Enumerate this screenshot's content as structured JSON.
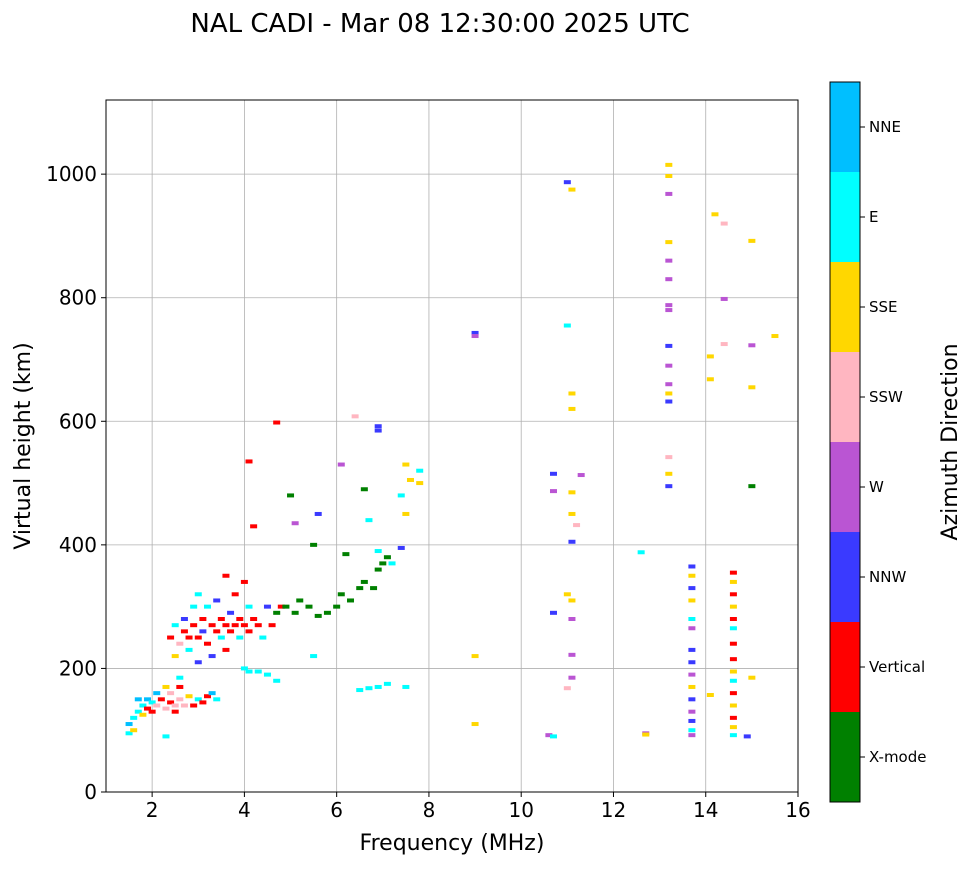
{
  "chart_data": {
    "type": "scatter",
    "title": "NAL CADI - Mar 08 12:30:00 2025 UTC",
    "xlabel": "Frequency (MHz)",
    "ylabel": "Virtual height (km)",
    "xlim": [
      1,
      16
    ],
    "ylim": [
      0,
      1120
    ],
    "xticks": [
      2,
      4,
      6,
      8,
      10,
      12,
      14,
      16
    ],
    "yticks": [
      0,
      200,
      400,
      600,
      800,
      1000
    ],
    "grid": true,
    "colorbar": {
      "label": "Azimuth Direction",
      "categories": [
        "X-mode",
        "Vertical",
        "NNW",
        "W",
        "SSW",
        "SSE",
        "E",
        "NNE"
      ],
      "colors": [
        "#008000",
        "#ff0000",
        "#3a3aff",
        "#ba55d3",
        "#ffb6c1",
        "#ffd700",
        "#00ffff",
        "#00bfff"
      ]
    },
    "points": [
      [
        1.5,
        95,
        6
      ],
      [
        1.5,
        110,
        7
      ],
      [
        1.6,
        120,
        6
      ],
      [
        1.6,
        100,
        5
      ],
      [
        1.7,
        130,
        6
      ],
      [
        1.7,
        150,
        7
      ],
      [
        1.8,
        125,
        5
      ],
      [
        1.8,
        140,
        6
      ],
      [
        1.9,
        135,
        1
      ],
      [
        1.9,
        150,
        7
      ],
      [
        2.0,
        130,
        1
      ],
      [
        2.0,
        145,
        6
      ],
      [
        2.1,
        160,
        7
      ],
      [
        2.1,
        140,
        4
      ],
      [
        2.2,
        150,
        1
      ],
      [
        2.3,
        170,
        5
      ],
      [
        2.3,
        135,
        4
      ],
      [
        2.4,
        145,
        1
      ],
      [
        2.4,
        160,
        4
      ],
      [
        2.5,
        140,
        4
      ],
      [
        2.5,
        130,
        1
      ],
      [
        2.6,
        150,
        4
      ],
      [
        2.6,
        170,
        1
      ],
      [
        2.7,
        140,
        4
      ],
      [
        2.8,
        155,
        5
      ],
      [
        2.9,
        140,
        1
      ],
      [
        3.0,
        150,
        6
      ],
      [
        3.1,
        145,
        1
      ],
      [
        3.2,
        155,
        1
      ],
      [
        3.3,
        160,
        7
      ],
      [
        3.4,
        150,
        6
      ],
      [
        2.3,
        90,
        6
      ],
      [
        2.6,
        185,
        6
      ],
      [
        2.4,
        250,
        1
      ],
      [
        2.5,
        270,
        6
      ],
      [
        2.5,
        220,
        5
      ],
      [
        2.6,
        240,
        4
      ],
      [
        2.7,
        260,
        1
      ],
      [
        2.7,
        280,
        2
      ],
      [
        2.8,
        250,
        1
      ],
      [
        2.8,
        230,
        6
      ],
      [
        2.9,
        270,
        1
      ],
      [
        2.9,
        300,
        6
      ],
      [
        3.0,
        250,
        1
      ],
      [
        3.0,
        210,
        2
      ],
      [
        3.1,
        280,
        1
      ],
      [
        3.1,
        260,
        2
      ],
      [
        3.2,
        240,
        1
      ],
      [
        3.2,
        300,
        6
      ],
      [
        3.3,
        270,
        1
      ],
      [
        3.3,
        220,
        2
      ],
      [
        3.4,
        260,
        1
      ],
      [
        3.4,
        310,
        2
      ],
      [
        3.5,
        280,
        1
      ],
      [
        3.5,
        250,
        6
      ],
      [
        3.6,
        270,
        1
      ],
      [
        3.6,
        230,
        1
      ],
      [
        3.7,
        290,
        2
      ],
      [
        3.7,
        260,
        1
      ],
      [
        3.8,
        270,
        1
      ],
      [
        3.8,
        320,
        1
      ],
      [
        3.9,
        250,
        6
      ],
      [
        3.9,
        280,
        1
      ],
      [
        4.0,
        270,
        1
      ],
      [
        4.0,
        340,
        1
      ],
      [
        4.1,
        260,
        1
      ],
      [
        4.1,
        300,
        6
      ],
      [
        4.2,
        280,
        1
      ],
      [
        4.3,
        270,
        1
      ],
      [
        4.4,
        250,
        6
      ],
      [
        4.5,
        300,
        2
      ],
      [
        4.6,
        270,
        1
      ],
      [
        4.8,
        300,
        1
      ],
      [
        3.6,
        350,
        1
      ],
      [
        3.0,
        320,
        6
      ],
      [
        4.0,
        200,
        6
      ],
      [
        4.1,
        195,
        6
      ],
      [
        4.3,
        195,
        6
      ],
      [
        4.5,
        190,
        6
      ],
      [
        4.7,
        180,
        6
      ],
      [
        5.5,
        220,
        6
      ],
      [
        6.5,
        165,
        6
      ],
      [
        6.7,
        168,
        6
      ],
      [
        6.9,
        170,
        6
      ],
      [
        7.1,
        175,
        6
      ],
      [
        7.5,
        170,
        6
      ],
      [
        4.7,
        290,
        0
      ],
      [
        4.9,
        300,
        0
      ],
      [
        5.1,
        290,
        0
      ],
      [
        5.2,
        310,
        0
      ],
      [
        5.4,
        300,
        0
      ],
      [
        5.6,
        285,
        0
      ],
      [
        5.8,
        290,
        0
      ],
      [
        6.0,
        300,
        0
      ],
      [
        6.1,
        320,
        0
      ],
      [
        6.3,
        310,
        0
      ],
      [
        6.5,
        330,
        0
      ],
      [
        6.6,
        340,
        0
      ],
      [
        6.8,
        330,
        0
      ],
      [
        6.9,
        360,
        0
      ],
      [
        7.0,
        370,
        0
      ],
      [
        7.1,
        380,
        0
      ],
      [
        6.2,
        385,
        0
      ],
      [
        6.6,
        490,
        0
      ],
      [
        5.0,
        480,
        0
      ],
      [
        5.5,
        400,
        0
      ],
      [
        6.9,
        390,
        6
      ],
      [
        7.2,
        370,
        6
      ],
      [
        7.4,
        395,
        2
      ],
      [
        4.1,
        535,
        1
      ],
      [
        4.7,
        598,
        1
      ],
      [
        4.2,
        430,
        1
      ],
      [
        6.4,
        608,
        4
      ],
      [
        6.9,
        592,
        2
      ],
      [
        6.9,
        585,
        2
      ],
      [
        7.5,
        530,
        5
      ],
      [
        7.6,
        505,
        5
      ],
      [
        7.8,
        520,
        6
      ],
      [
        7.8,
        500,
        5
      ],
      [
        7.5,
        450,
        5
      ],
      [
        7.4,
        480,
        6
      ],
      [
        6.1,
        530,
        3
      ],
      [
        5.1,
        435,
        3
      ],
      [
        5.6,
        450,
        2
      ],
      [
        6.7,
        440,
        6
      ],
      [
        9.0,
        743,
        2
      ],
      [
        9.0,
        738,
        3
      ],
      [
        9.0,
        220,
        5
      ],
      [
        9.0,
        110,
        5
      ],
      [
        10.7,
        515,
        2
      ],
      [
        10.7,
        487,
        3
      ],
      [
        10.7,
        290,
        2
      ],
      [
        10.6,
        92,
        3
      ],
      [
        10.7,
        90,
        6
      ],
      [
        11.0,
        987,
        2
      ],
      [
        11.1,
        975,
        5
      ],
      [
        11.0,
        755,
        6
      ],
      [
        11.1,
        645,
        5
      ],
      [
        11.1,
        620,
        5
      ],
      [
        11.3,
        513,
        3
      ],
      [
        11.1,
        485,
        5
      ],
      [
        11.1,
        450,
        5
      ],
      [
        11.2,
        432,
        4
      ],
      [
        11.1,
        405,
        2
      ],
      [
        11.0,
        320,
        5
      ],
      [
        11.1,
        310,
        5
      ],
      [
        11.1,
        280,
        3
      ],
      [
        11.1,
        222,
        3
      ],
      [
        11.1,
        185,
        3
      ],
      [
        11.0,
        168,
        4
      ],
      [
        12.6,
        388,
        6
      ],
      [
        12.7,
        95,
        3
      ],
      [
        12.7,
        93,
        5
      ],
      [
        13.2,
        1015,
        5
      ],
      [
        13.2,
        997,
        5
      ],
      [
        13.2,
        968,
        3
      ],
      [
        13.2,
        890,
        5
      ],
      [
        13.2,
        860,
        3
      ],
      [
        13.2,
        830,
        3
      ],
      [
        13.2,
        788,
        3
      ],
      [
        13.2,
        780,
        3
      ],
      [
        13.2,
        722,
        2
      ],
      [
        13.2,
        690,
        3
      ],
      [
        13.2,
        660,
        3
      ],
      [
        13.2,
        645,
        5
      ],
      [
        13.2,
        632,
        2
      ],
      [
        13.2,
        542,
        4
      ],
      [
        13.2,
        515,
        5
      ],
      [
        13.2,
        495,
        2
      ],
      [
        13.7,
        365,
        2
      ],
      [
        13.7,
        350,
        5
      ],
      [
        13.7,
        330,
        2
      ],
      [
        13.7,
        310,
        5
      ],
      [
        13.7,
        280,
        6
      ],
      [
        13.7,
        265,
        3
      ],
      [
        13.7,
        230,
        2
      ],
      [
        13.7,
        210,
        2
      ],
      [
        13.7,
        190,
        3
      ],
      [
        13.7,
        170,
        5
      ],
      [
        13.7,
        150,
        2
      ],
      [
        13.7,
        130,
        3
      ],
      [
        13.7,
        115,
        2
      ],
      [
        13.7,
        100,
        6
      ],
      [
        13.7,
        92,
        3
      ],
      [
        14.6,
        355,
        1
      ],
      [
        14.6,
        340,
        5
      ],
      [
        14.6,
        320,
        1
      ],
      [
        14.6,
        300,
        5
      ],
      [
        14.6,
        280,
        1
      ],
      [
        14.6,
        265,
        6
      ],
      [
        14.6,
        240,
        1
      ],
      [
        14.6,
        215,
        1
      ],
      [
        14.6,
        195,
        5
      ],
      [
        14.6,
        180,
        6
      ],
      [
        14.6,
        160,
        1
      ],
      [
        14.6,
        140,
        5
      ],
      [
        14.6,
        120,
        1
      ],
      [
        14.6,
        105,
        5
      ],
      [
        14.6,
        92,
        6
      ],
      [
        14.9,
        90,
        2
      ],
      [
        14.2,
        935,
        5
      ],
      [
        14.4,
        920,
        4
      ],
      [
        14.1,
        705,
        5
      ],
      [
        14.1,
        668,
        5
      ],
      [
        14.4,
        798,
        3
      ],
      [
        14.4,
        725,
        4
      ],
      [
        14.1,
        157,
        5
      ],
      [
        15.0,
        892,
        5
      ],
      [
        15.5,
        738,
        5
      ],
      [
        15.0,
        723,
        3
      ],
      [
        15.0,
        655,
        5
      ],
      [
        15.0,
        495,
        0
      ],
      [
        15.0,
        185,
        5
      ]
    ]
  }
}
